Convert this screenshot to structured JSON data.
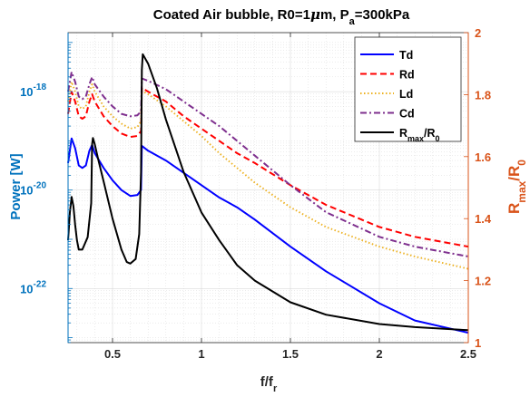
{
  "chart_data": {
    "type": "line",
    "title": {
      "main": "Coated Air bubble, R0=1",
      "mu": "μ",
      "mid": "m, P",
      "sub": "a",
      "tail": "=300kPa"
    },
    "xlabel": {
      "main": "f/f",
      "sub": "r"
    },
    "ylabel_left": "Power [W]",
    "ylabel_right": {
      "main": "R",
      "sub1": "max",
      "mid": "/R",
      "sub2": "0"
    },
    "xlim": [
      0.25,
      2.5
    ],
    "ylim_left_log10": [
      -23.1,
      -16.8
    ],
    "ylim_right": [
      1.0,
      2.0
    ],
    "x_ticks": [
      {
        "v": 0.5,
        "label": "0.5"
      },
      {
        "v": 1,
        "label": "1"
      },
      {
        "v": 1.5,
        "label": "1.5"
      },
      {
        "v": 2,
        "label": "2"
      },
      {
        "v": 2.5,
        "label": "2.5"
      }
    ],
    "y_left_ticks": [
      {
        "exp": -18,
        "base": "10",
        "sup": "-18"
      },
      {
        "exp": -20,
        "base": "10",
        "sup": "-20"
      },
      {
        "exp": -22,
        "base": "10",
        "sup": "-22"
      }
    ],
    "y_right_ticks": [
      {
        "v": 1.0,
        "label": "1"
      },
      {
        "v": 1.2,
        "label": "1.2"
      },
      {
        "v": 1.4,
        "label": "1.4"
      },
      {
        "v": 1.6,
        "label": "1.6"
      },
      {
        "v": 1.8,
        "label": "1.8"
      },
      {
        "v": 2.0,
        "label": "2"
      }
    ],
    "grid": true,
    "legend_position": "top-right",
    "colors": {
      "left_axis": "#0072BD",
      "right_axis": "#D95319",
      "Td": "#0000FF",
      "Rd": "#FF0000",
      "Ld": "#EDB120",
      "Cd": "#7E2F8E",
      "ratio": "#000000"
    },
    "series": [
      {
        "name": "Td",
        "axis": "left",
        "style": "solid",
        "x": [
          0.25,
          0.27,
          0.29,
          0.31,
          0.33,
          0.35,
          0.37,
          0.385,
          0.4,
          0.45,
          0.5,
          0.55,
          0.6,
          0.64,
          0.66,
          0.665,
          0.7,
          0.8,
          0.9,
          1.0,
          1.1,
          1.2,
          1.3,
          1.5,
          1.7,
          2.0,
          2.2,
          2.5
        ],
        "log10y": [
          -19.45,
          -18.95,
          -19.15,
          -19.5,
          -19.55,
          -19.5,
          -19.2,
          -19.08,
          -19.25,
          -19.55,
          -19.8,
          -20.0,
          -20.12,
          -20.1,
          -20.0,
          -19.1,
          -19.2,
          -19.4,
          -19.65,
          -19.9,
          -20.15,
          -20.35,
          -20.6,
          -21.15,
          -21.65,
          -22.3,
          -22.65,
          -22.9
        ]
      },
      {
        "name": "Rd",
        "axis": "left",
        "style": "dashed",
        "x": [
          0.25,
          0.27,
          0.29,
          0.31,
          0.33,
          0.35,
          0.37,
          0.385,
          0.4,
          0.45,
          0.5,
          0.55,
          0.6,
          0.64,
          0.66,
          0.665,
          0.7,
          0.8,
          0.9,
          1.0,
          1.1,
          1.2,
          1.3,
          1.5,
          1.7,
          2.0,
          2.2,
          2.5
        ],
        "log10y": [
          -18.45,
          -18.0,
          -18.2,
          -18.5,
          -18.55,
          -18.5,
          -18.2,
          -18.05,
          -18.2,
          -18.5,
          -18.7,
          -18.85,
          -18.92,
          -18.9,
          -18.8,
          -17.92,
          -18.0,
          -18.2,
          -18.5,
          -18.75,
          -19.0,
          -19.25,
          -19.45,
          -19.9,
          -20.3,
          -20.75,
          -20.95,
          -21.15
        ]
      },
      {
        "name": "Ld",
        "axis": "left",
        "style": "dotted",
        "x": [
          0.25,
          0.27,
          0.29,
          0.31,
          0.33,
          0.35,
          0.37,
          0.385,
          0.4,
          0.45,
          0.5,
          0.55,
          0.6,
          0.64,
          0.66,
          0.665,
          0.7,
          0.8,
          0.9,
          1.0,
          1.1,
          1.2,
          1.3,
          1.5,
          1.7,
          2.0,
          2.2,
          2.5
        ],
        "log10y": [
          -18.2,
          -17.8,
          -18.0,
          -18.3,
          -18.35,
          -18.3,
          -18.0,
          -17.85,
          -18.0,
          -18.3,
          -18.5,
          -18.65,
          -18.75,
          -18.72,
          -18.6,
          -17.98,
          -18.05,
          -18.3,
          -18.6,
          -18.9,
          -19.25,
          -19.55,
          -19.85,
          -20.35,
          -20.75,
          -21.15,
          -21.35,
          -21.6
        ]
      },
      {
        "name": "Cd",
        "axis": "left",
        "style": "dashdot",
        "x": [
          0.25,
          0.27,
          0.29,
          0.31,
          0.33,
          0.35,
          0.37,
          0.385,
          0.4,
          0.45,
          0.5,
          0.55,
          0.6,
          0.64,
          0.66,
          0.665,
          0.7,
          0.8,
          0.9,
          1.0,
          1.1,
          1.2,
          1.3,
          1.5,
          1.7,
          2.0,
          2.2,
          2.5
        ],
        "log10y": [
          -18.0,
          -17.6,
          -17.8,
          -18.1,
          -18.15,
          -18.1,
          -17.85,
          -17.7,
          -17.85,
          -18.1,
          -18.3,
          -18.45,
          -18.5,
          -18.48,
          -18.4,
          -17.73,
          -17.78,
          -17.95,
          -18.2,
          -18.45,
          -18.7,
          -19.0,
          -19.3,
          -19.9,
          -20.45,
          -20.95,
          -21.15,
          -21.35
        ]
      },
      {
        "name": "ratio",
        "axis": "right",
        "style": "solid",
        "x": [
          0.25,
          0.26,
          0.27,
          0.28,
          0.29,
          0.3,
          0.31,
          0.33,
          0.36,
          0.38,
          0.385,
          0.39,
          0.4,
          0.42,
          0.45,
          0.5,
          0.55,
          0.58,
          0.6,
          0.63,
          0.65,
          0.66,
          0.665,
          0.67,
          0.68,
          0.7,
          0.75,
          0.8,
          0.9,
          1.0,
          1.1,
          1.2,
          1.3,
          1.5,
          1.7,
          2.0,
          2.2,
          2.5
        ],
        "y": [
          1.33,
          1.42,
          1.47,
          1.44,
          1.38,
          1.33,
          1.3,
          1.3,
          1.34,
          1.45,
          1.64,
          1.66,
          1.64,
          1.59,
          1.52,
          1.4,
          1.3,
          1.26,
          1.255,
          1.27,
          1.35,
          1.55,
          1.88,
          1.93,
          1.92,
          1.9,
          1.82,
          1.72,
          1.55,
          1.42,
          1.33,
          1.25,
          1.2,
          1.13,
          1.09,
          1.06,
          1.05,
          1.04
        ]
      }
    ],
    "legend": [
      {
        "key": "Td",
        "label": "Td"
      },
      {
        "key": "Rd",
        "label": "Rd"
      },
      {
        "key": "Ld",
        "label": "Ld"
      },
      {
        "key": "Cd",
        "label": "Cd"
      },
      {
        "key": "ratio",
        "label_main": "R",
        "label_sub1": "max",
        "label_mid": "/R",
        "label_sub2": "0"
      }
    ]
  }
}
